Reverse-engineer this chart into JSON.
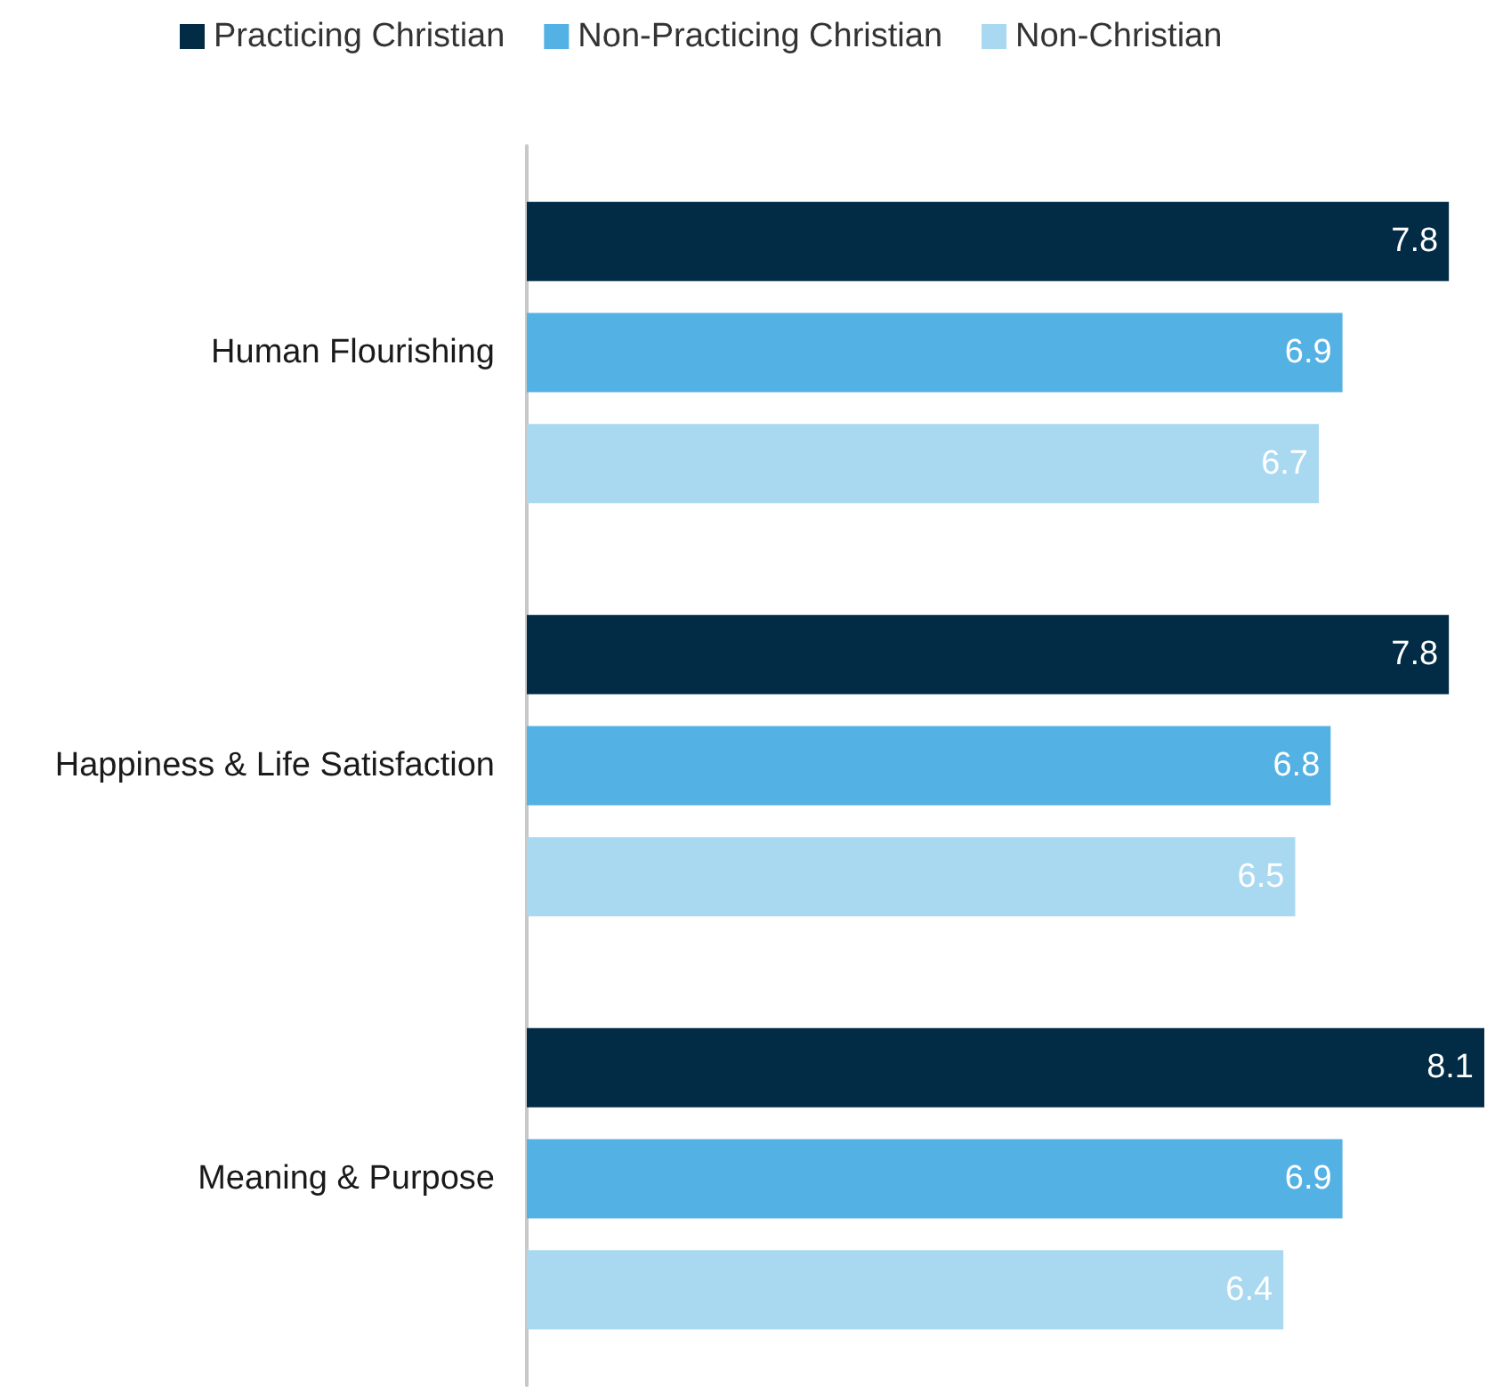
{
  "chart_data": {
    "type": "bar",
    "orientation": "horizontal",
    "categories": [
      "Human Flourishing",
      "Happiness & Life Satisfaction",
      "Meaning & Purpose"
    ],
    "series": [
      {
        "name": "Practicing Christian",
        "color": "#022b46",
        "values": [
          7.8,
          7.8,
          8.1
        ]
      },
      {
        "name": "Non-Practicing Christian",
        "color": "#53b1e4",
        "values": [
          6.9,
          6.8,
          6.9
        ]
      },
      {
        "name": "Non-Christian",
        "color": "#a9d8f1",
        "values": [
          6.7,
          6.5,
          6.4
        ]
      }
    ],
    "data_labels": true,
    "legend": "top left"
  }
}
